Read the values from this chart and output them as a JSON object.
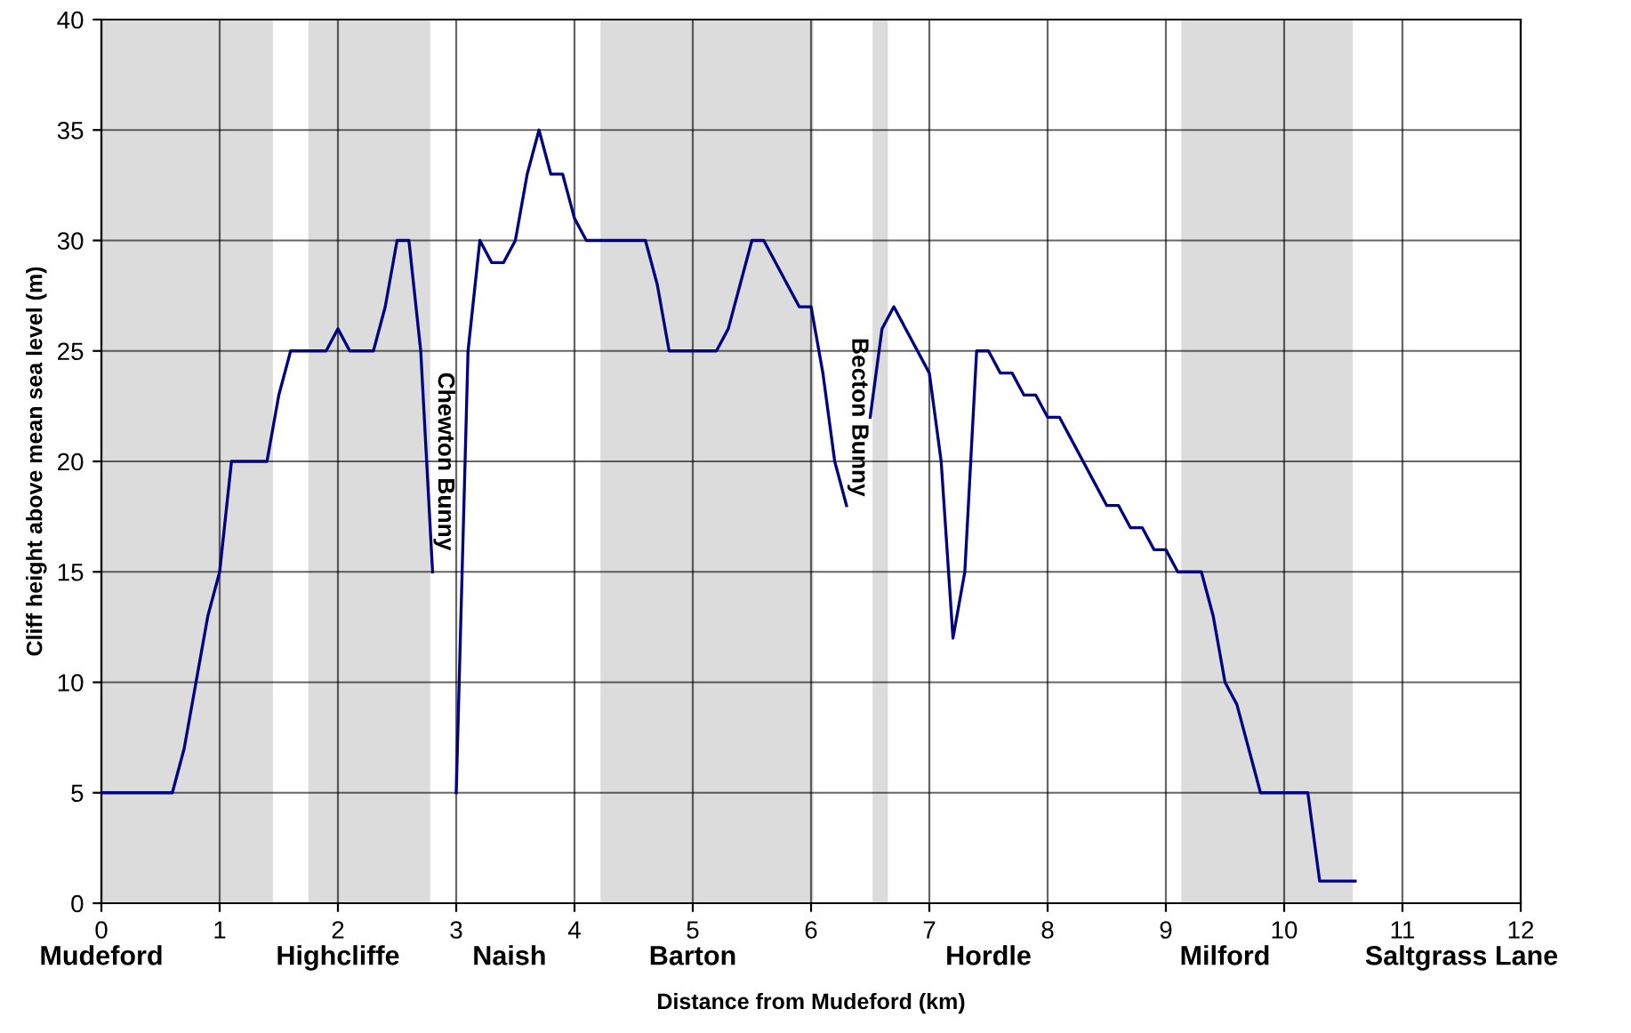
{
  "chart_data": {
    "type": "line",
    "xlabel": "Distance from Mudeford (km)",
    "ylabel": "Cliff height above mean sea level (m)",
    "series": [
      {
        "color": "#000080",
        "x": [
          0,
          0.6,
          0.7,
          0.8,
          0.9,
          1.0,
          1.1,
          1.4,
          1.5,
          1.6,
          1.9,
          2.0,
          2.1,
          2.3,
          2.4,
          2.5,
          2.6,
          2.7,
          2.8,
          2.9,
          3.0,
          3.1,
          3.2,
          3.3,
          3.4,
          3.5,
          3.6,
          3.7,
          3.8,
          3.9,
          4.0,
          4.1,
          4.6,
          4.7,
          4.8,
          5.2,
          5.3,
          5.5,
          5.6,
          5.9,
          6.0,
          6.1,
          6.2,
          6.3,
          6.4,
          6.5,
          6.6,
          6.7,
          7.0,
          7.1,
          7.2,
          7.3,
          7.4,
          7.5,
          7.6,
          7.7,
          7.8,
          7.9,
          8.0,
          8.1,
          8.2,
          8.3,
          8.4,
          8.5,
          8.6,
          8.7,
          8.8,
          8.9,
          9.0,
          9.1,
          9.3,
          9.4,
          9.5,
          9.6,
          9.8,
          10.2,
          10.3,
          10.6
        ],
        "values": [
          5,
          5,
          7,
          10,
          13,
          15,
          20,
          20,
          23,
          25,
          25,
          26,
          25,
          25,
          27,
          30,
          30,
          25,
          15,
          null,
          5,
          25,
          30,
          29,
          29,
          30,
          33,
          35,
          33,
          33,
          31,
          30,
          30,
          28,
          25,
          25,
          26,
          30,
          30,
          27,
          27,
          24,
          20,
          18,
          null,
          22,
          26,
          27,
          24,
          20,
          12,
          15,
          25,
          25,
          24,
          24,
          23,
          23,
          22,
          22,
          21,
          20,
          19,
          18,
          18,
          17,
          17,
          16,
          16,
          15,
          15,
          13,
          10,
          9,
          5,
          5,
          1,
          1
        ]
      }
    ],
    "xlim": [
      0,
      12
    ],
    "xticks": [
      0,
      1,
      2,
      3,
      4,
      5,
      6,
      7,
      8,
      9,
      10,
      11,
      12
    ],
    "ylim": [
      0,
      40
    ],
    "yticks": [
      0,
      5,
      10,
      15,
      20,
      25,
      30,
      35,
      40
    ],
    "grid": true,
    "marker": "none",
    "line_style": "solid",
    "legend": false,
    "bands": [
      {
        "axis": "x",
        "from": 0,
        "to": 1.45,
        "color": "#dcdcdc"
      },
      {
        "axis": "x",
        "from": 1.75,
        "to": 2.78,
        "color": "#dcdcdc"
      },
      {
        "axis": "x",
        "from": 4.22,
        "to": 6.02,
        "color": "#dcdcdc"
      },
      {
        "axis": "x",
        "from": 6.52,
        "to": 6.65,
        "color": "#dcdcdc"
      },
      {
        "axis": "x",
        "from": 9.13,
        "to": 10.58,
        "color": "#dcdcdc"
      }
    ],
    "annotations": [
      "Chewton Bunny",
      "Becton Bunny",
      "Mudeford",
      "Highcliffe",
      "Naish",
      "Barton",
      "Hordle",
      "Milford",
      "Saltgrass Lane"
    ]
  }
}
